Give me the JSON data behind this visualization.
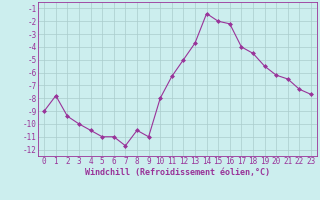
{
  "x": [
    0,
    1,
    2,
    3,
    4,
    5,
    6,
    7,
    8,
    9,
    10,
    11,
    12,
    13,
    14,
    15,
    16,
    17,
    18,
    19,
    20,
    21,
    22,
    23
  ],
  "y": [
    -9,
    -7.8,
    -9.4,
    -10.0,
    -10.5,
    -11.0,
    -11.0,
    -11.7,
    -10.5,
    -11.0,
    -8.0,
    -6.3,
    -5.0,
    -3.7,
    -1.4,
    -2.0,
    -2.2,
    -4.0,
    -4.5,
    -5.5,
    -6.2,
    -6.5,
    -7.3,
    -7.7
  ],
  "line_color": "#993399",
  "marker": "D",
  "marker_size": 2.0,
  "bg_color": "#cceeee",
  "grid_color": "#aacccc",
  "xlabel": "Windchill (Refroidissement éolien,°C)",
  "xlabel_fontsize": 6.0,
  "ylim": [
    -12.5,
    -0.5
  ],
  "xlim": [
    -0.5,
    23.5
  ],
  "yticks": [
    -1,
    -2,
    -3,
    -4,
    -5,
    -6,
    -7,
    -8,
    -9,
    -10,
    -11,
    -12
  ],
  "xticks": [
    0,
    1,
    2,
    3,
    4,
    5,
    6,
    7,
    8,
    9,
    10,
    11,
    12,
    13,
    14,
    15,
    16,
    17,
    18,
    19,
    20,
    21,
    22,
    23
  ],
  "tick_fontsize": 5.5,
  "tick_color": "#993399",
  "spine_color": "#993399",
  "linewidth": 0.8
}
